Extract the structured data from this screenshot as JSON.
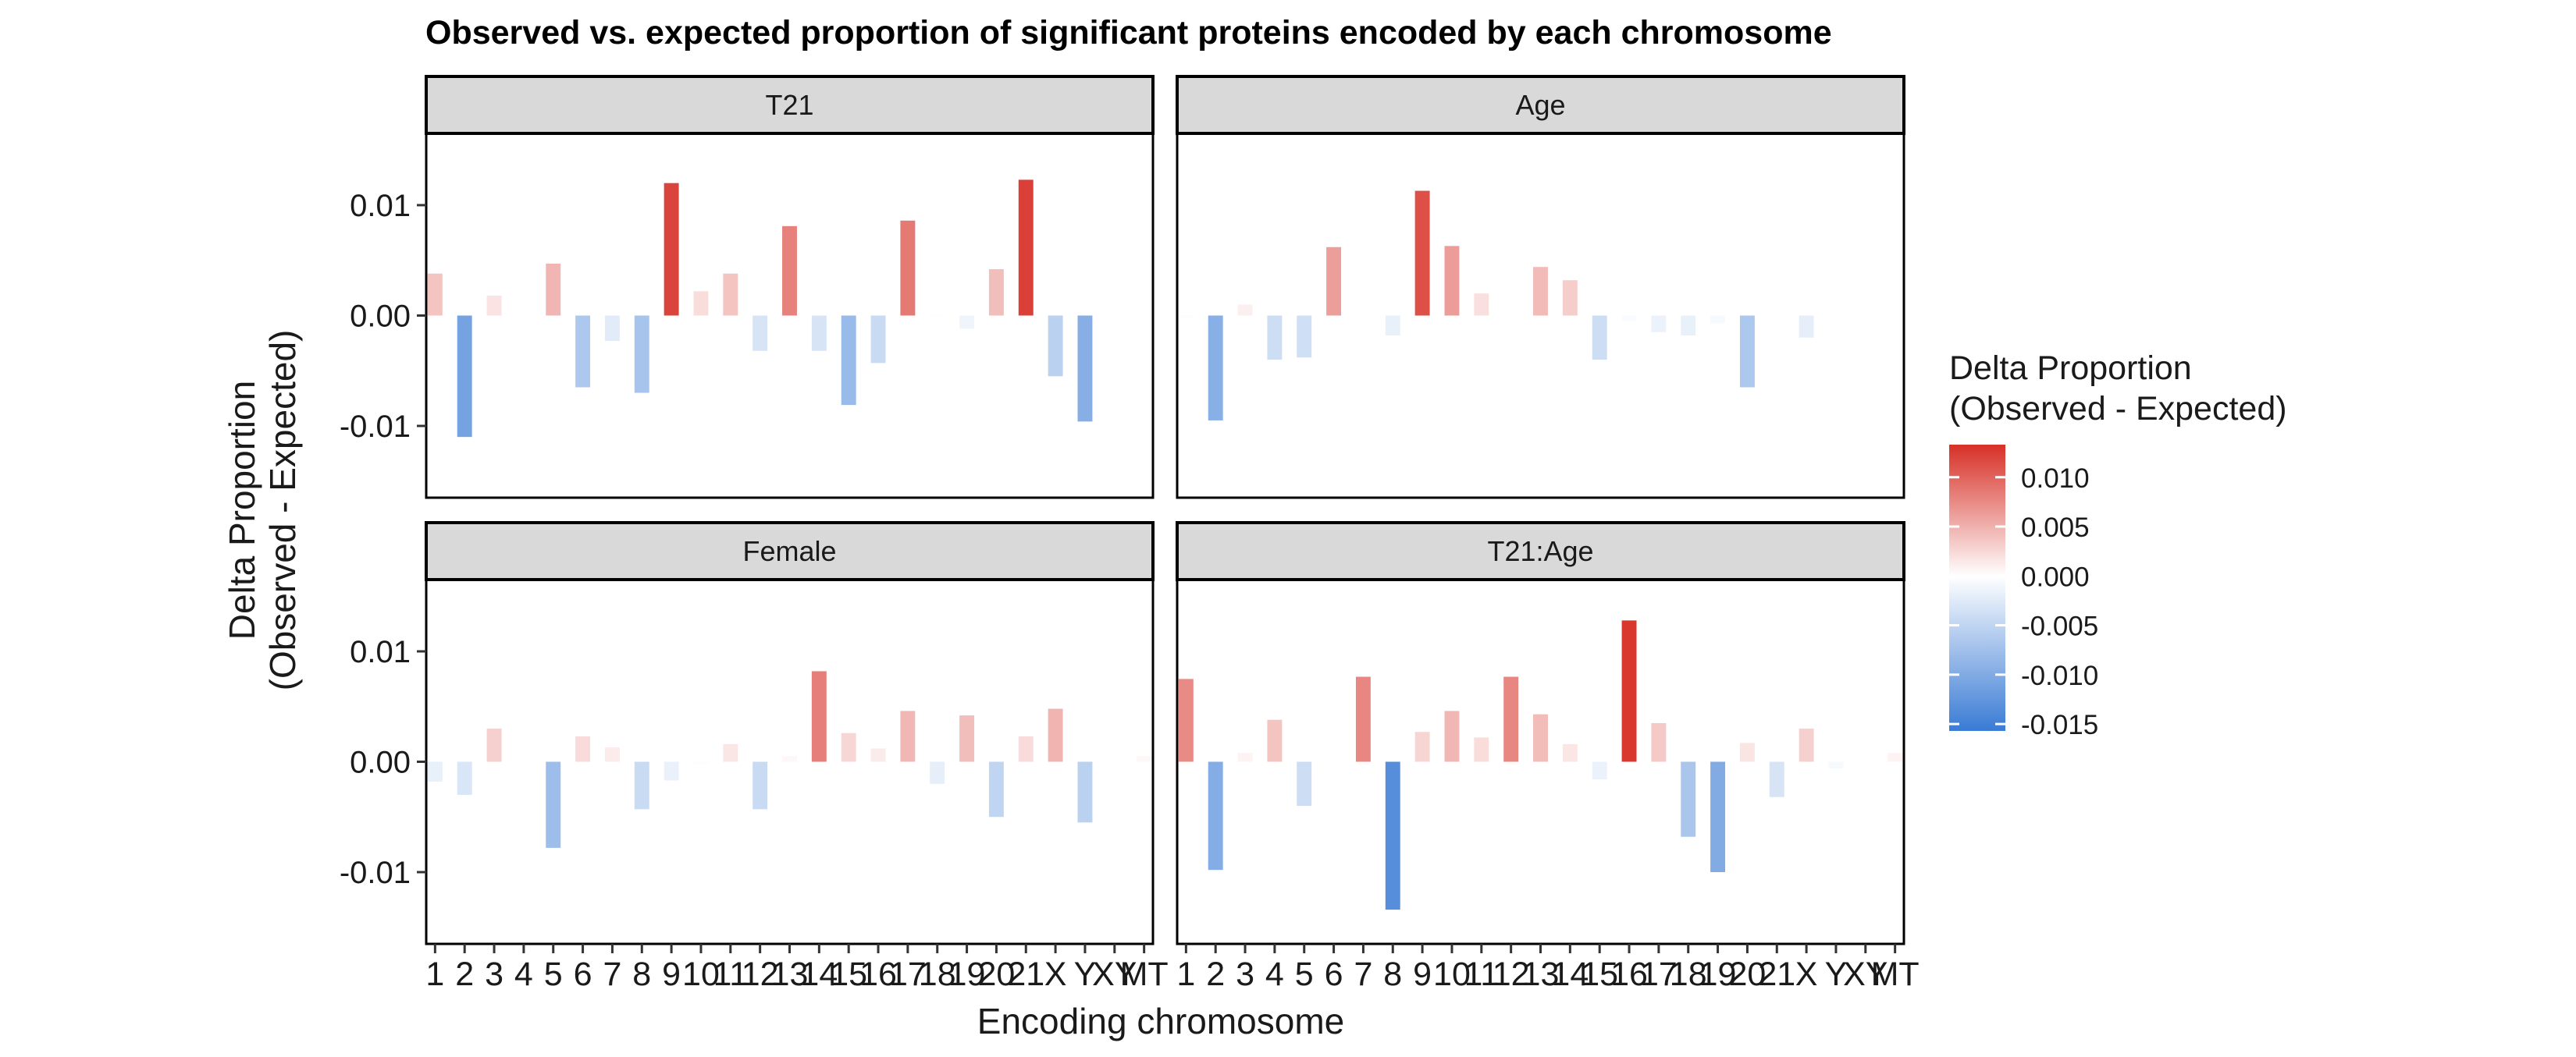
{
  "chart_data": {
    "type": "bar",
    "title": "Observed vs. expected proportion of significant proteins encoded by each chromosome",
    "xlabel": "Encoding chromosome",
    "ylabel": "Delta Proportion\n(Observed - Expected)",
    "categories": [
      "1",
      "2",
      "3",
      "4",
      "5",
      "6",
      "7",
      "8",
      "9",
      "10",
      "11",
      "12",
      "13",
      "14",
      "15",
      "16",
      "17",
      "18",
      "19",
      "20",
      "21",
      "X",
      "Y",
      "XY",
      "MT"
    ],
    "ylim": [
      -0.0165,
      0.0165
    ],
    "y_ticks": [
      -0.01,
      0.0,
      0.01
    ],
    "y_tick_labels": [
      "-0.01",
      "0.00",
      "0.01"
    ],
    "grid": false,
    "facets": [
      {
        "name": "T21",
        "values": [
          0.0038,
          -0.011,
          0.0018,
          0,
          0.0047,
          -0.0065,
          -0.0023,
          -0.007,
          0.012,
          0.0022,
          0.0038,
          -0.0032,
          0.0081,
          -0.0032,
          -0.0081,
          -0.0043,
          0.0086,
          0.0001,
          -0.0012,
          0.0042,
          0.0123,
          -0.0055,
          -0.0096,
          0,
          0
        ]
      },
      {
        "name": "Age",
        "values": [
          -0.0002,
          -0.0095,
          0.001,
          -0.004,
          -0.0038,
          0.0062,
          -0.0001,
          -0.0018,
          0.0113,
          0.0063,
          0.002,
          0,
          0.0044,
          0.0032,
          -0.004,
          -0.0005,
          -0.0015,
          -0.0018,
          -0.0007,
          -0.0065,
          -0.0001,
          -0.002,
          0,
          0,
          0
        ]
      },
      {
        "name": "Female",
        "values": [
          -0.0018,
          -0.003,
          0.003,
          0,
          -0.0078,
          0.0023,
          0.0013,
          -0.0043,
          -0.0017,
          -0.0002,
          0.0016,
          -0.0043,
          0.0005,
          0.0082,
          0.0026,
          0.0012,
          0.0046,
          -0.002,
          0.0042,
          -0.005,
          0.0023,
          0.0048,
          -0.0055,
          0,
          0.0005
        ]
      },
      {
        "name": "T21:Age",
        "values": [
          0.0075,
          -0.0098,
          0.0008,
          0.0038,
          -0.004,
          0,
          0.0077,
          -0.0134,
          0.0027,
          0.0046,
          0.0022,
          0.0077,
          0.0043,
          0.0016,
          -0.0016,
          0.0128,
          0.0035,
          -0.0068,
          -0.01,
          0.0017,
          -0.0032,
          0.003,
          -0.0006,
          0,
          0.0008
        ]
      }
    ],
    "legend": {
      "title": "Delta Proportion\n(Observed - Expected)",
      "placement": "right",
      "limits": [
        -0.0157,
        0.0133
      ],
      "ticks": [
        0.01,
        0.005,
        0.0,
        -0.005,
        -0.01,
        -0.015
      ],
      "tick_labels": [
        "0.010",
        "0.005",
        "0.000",
        "-0.005",
        "-0.010",
        "-0.015"
      ],
      "low_color": "#3a7bd5",
      "mid_color": "#ffffff",
      "high_color": "#d73027"
    }
  }
}
